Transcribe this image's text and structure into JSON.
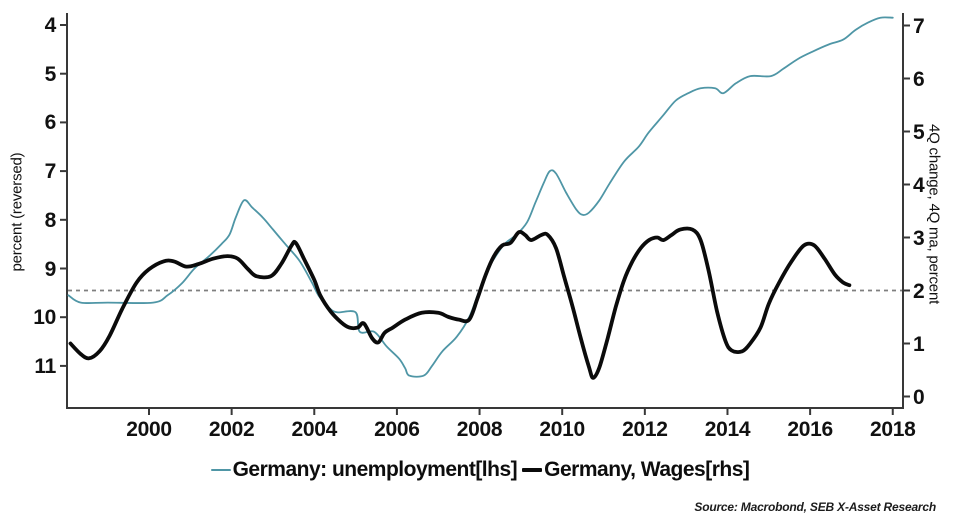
{
  "source": "Source: Macrobond, SEB X-Asset Research",
  "chart_data": {
    "type": "line",
    "title": "",
    "grid": false,
    "legend_position": "bottom",
    "x_axis": {
      "ticks": [
        2000,
        2002,
        2004,
        2006,
        2008,
        2010,
        2012,
        2014,
        2016,
        2018
      ],
      "range": [
        1998.0,
        2018.3
      ]
    },
    "left_axis": {
      "title": "percent (reversed)",
      "reversed": true,
      "ticks": [
        4,
        5,
        6,
        7,
        8,
        9,
        10,
        11
      ],
      "range": [
        3.75,
        11.9
      ]
    },
    "right_axis": {
      "title": "4Q change, 4Q ma, percent",
      "ticks": [
        7,
        6,
        5,
        4,
        3,
        2,
        1,
        0
      ],
      "range": [
        -0.2,
        7.2
      ]
    },
    "reference_line": {
      "axis": "rhs",
      "value": 2,
      "style": "dashed",
      "color": "#7f7f7f"
    },
    "axis_color": "#383838",
    "series": [
      {
        "name": "Germany: unemployment[lhs]",
        "axis": "lhs",
        "color": "#4f96a6",
        "line_width": 1.8,
        "points": [
          [
            1998.05,
            9.55
          ],
          [
            1998.35,
            9.7
          ],
          [
            1999.0,
            9.7
          ],
          [
            2000.1,
            9.7
          ],
          [
            2000.45,
            9.55
          ],
          [
            2000.8,
            9.3
          ],
          [
            2001.1,
            9.0
          ],
          [
            2001.45,
            8.75
          ],
          [
            2001.75,
            8.5
          ],
          [
            2001.95,
            8.3
          ],
          [
            2002.1,
            7.95
          ],
          [
            2002.3,
            7.6
          ],
          [
            2002.5,
            7.75
          ],
          [
            2002.75,
            7.95
          ],
          [
            2003.0,
            8.2
          ],
          [
            2003.3,
            8.5
          ],
          [
            2003.65,
            8.85
          ],
          [
            2003.95,
            9.3
          ],
          [
            2004.1,
            9.55
          ],
          [
            2004.35,
            9.8
          ],
          [
            2004.55,
            9.9
          ],
          [
            2005.0,
            9.9
          ],
          [
            2005.1,
            10.3
          ],
          [
            2005.45,
            10.3
          ],
          [
            2005.75,
            10.6
          ],
          [
            2006.05,
            10.85
          ],
          [
            2006.2,
            11.05
          ],
          [
            2006.3,
            11.2
          ],
          [
            2006.65,
            11.2
          ],
          [
            2006.85,
            11.0
          ],
          [
            2007.1,
            10.7
          ],
          [
            2007.45,
            10.4
          ],
          [
            2007.75,
            10.0
          ],
          [
            2007.95,
            9.55
          ],
          [
            2008.15,
            9.1
          ],
          [
            2008.35,
            8.8
          ],
          [
            2008.6,
            8.5
          ],
          [
            2008.9,
            8.3
          ],
          [
            2009.15,
            8.05
          ],
          [
            2009.35,
            7.65
          ],
          [
            2009.55,
            7.25
          ],
          [
            2009.7,
            7.0
          ],
          [
            2009.85,
            7.05
          ],
          [
            2010.1,
            7.45
          ],
          [
            2010.35,
            7.8
          ],
          [
            2010.5,
            7.9
          ],
          [
            2010.65,
            7.85
          ],
          [
            2010.9,
            7.6
          ],
          [
            2011.15,
            7.25
          ],
          [
            2011.5,
            6.8
          ],
          [
            2011.85,
            6.5
          ],
          [
            2012.1,
            6.2
          ],
          [
            2012.45,
            5.85
          ],
          [
            2012.75,
            5.55
          ],
          [
            2013.05,
            5.4
          ],
          [
            2013.35,
            5.3
          ],
          [
            2013.7,
            5.3
          ],
          [
            2013.9,
            5.4
          ],
          [
            2014.2,
            5.2
          ],
          [
            2014.55,
            5.05
          ],
          [
            2015.05,
            5.05
          ],
          [
            2015.35,
            4.9
          ],
          [
            2015.7,
            4.7
          ],
          [
            2016.05,
            4.55
          ],
          [
            2016.45,
            4.4
          ],
          [
            2016.8,
            4.3
          ],
          [
            2017.1,
            4.1
          ],
          [
            2017.4,
            3.95
          ],
          [
            2017.7,
            3.85
          ],
          [
            2018.0,
            3.85
          ]
        ]
      },
      {
        "name": "Germany, Wages[rhs]",
        "axis": "rhs",
        "color": "#0b0b0b",
        "line_width": 3.8,
        "points": [
          [
            1998.1,
            1.0
          ],
          [
            1998.35,
            0.8
          ],
          [
            1998.55,
            0.72
          ],
          [
            1998.8,
            0.85
          ],
          [
            1999.05,
            1.15
          ],
          [
            1999.35,
            1.65
          ],
          [
            1999.7,
            2.15
          ],
          [
            2000.0,
            2.4
          ],
          [
            2000.35,
            2.55
          ],
          [
            2000.6,
            2.55
          ],
          [
            2000.9,
            2.45
          ],
          [
            2001.2,
            2.5
          ],
          [
            2001.55,
            2.6
          ],
          [
            2001.9,
            2.65
          ],
          [
            2002.15,
            2.6
          ],
          [
            2002.4,
            2.4
          ],
          [
            2002.6,
            2.27
          ],
          [
            2002.95,
            2.27
          ],
          [
            2003.2,
            2.5
          ],
          [
            2003.45,
            2.85
          ],
          [
            2003.55,
            2.9
          ],
          [
            2003.75,
            2.6
          ],
          [
            2004.0,
            2.2
          ],
          [
            2004.15,
            1.9
          ],
          [
            2004.4,
            1.6
          ],
          [
            2004.65,
            1.4
          ],
          [
            2004.85,
            1.3
          ],
          [
            2005.05,
            1.3
          ],
          [
            2005.2,
            1.38
          ],
          [
            2005.4,
            1.1
          ],
          [
            2005.55,
            1.02
          ],
          [
            2005.7,
            1.2
          ],
          [
            2005.9,
            1.3
          ],
          [
            2006.2,
            1.45
          ],
          [
            2006.6,
            1.58
          ],
          [
            2007.0,
            1.58
          ],
          [
            2007.25,
            1.5
          ],
          [
            2007.5,
            1.45
          ],
          [
            2007.75,
            1.45
          ],
          [
            2007.95,
            1.85
          ],
          [
            2008.15,
            2.3
          ],
          [
            2008.35,
            2.65
          ],
          [
            2008.55,
            2.85
          ],
          [
            2008.75,
            2.9
          ],
          [
            2008.95,
            3.1
          ],
          [
            2009.1,
            3.05
          ],
          [
            2009.25,
            2.95
          ],
          [
            2009.5,
            3.05
          ],
          [
            2009.65,
            3.05
          ],
          [
            2009.85,
            2.8
          ],
          [
            2010.05,
            2.25
          ],
          [
            2010.25,
            1.7
          ],
          [
            2010.45,
            1.1
          ],
          [
            2010.65,
            0.55
          ],
          [
            2010.75,
            0.35
          ],
          [
            2010.9,
            0.55
          ],
          [
            2011.1,
            1.1
          ],
          [
            2011.3,
            1.7
          ],
          [
            2011.5,
            2.2
          ],
          [
            2011.7,
            2.55
          ],
          [
            2011.9,
            2.8
          ],
          [
            2012.1,
            2.95
          ],
          [
            2012.3,
            3.0
          ],
          [
            2012.45,
            2.95
          ],
          [
            2012.65,
            3.05
          ],
          [
            2012.85,
            3.15
          ],
          [
            2013.15,
            3.15
          ],
          [
            2013.35,
            2.95
          ],
          [
            2013.55,
            2.35
          ],
          [
            2013.75,
            1.6
          ],
          [
            2013.95,
            1.05
          ],
          [
            2014.1,
            0.87
          ],
          [
            2014.35,
            0.85
          ],
          [
            2014.55,
            1.0
          ],
          [
            2014.8,
            1.3
          ],
          [
            2015.0,
            1.75
          ],
          [
            2015.25,
            2.15
          ],
          [
            2015.55,
            2.55
          ],
          [
            2015.85,
            2.85
          ],
          [
            2016.1,
            2.85
          ],
          [
            2016.35,
            2.6
          ],
          [
            2016.6,
            2.3
          ],
          [
            2016.8,
            2.15
          ],
          [
            2016.95,
            2.1
          ]
        ]
      }
    ]
  }
}
